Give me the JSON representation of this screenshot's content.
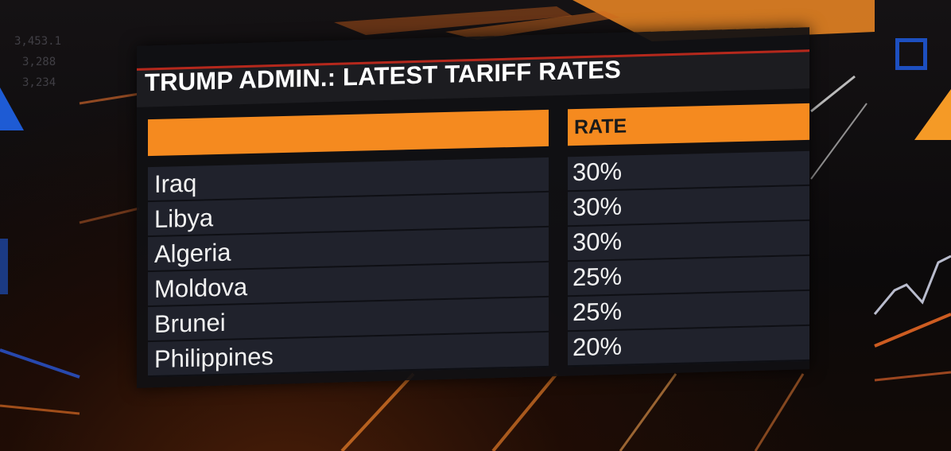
{
  "title": "TRUMP ADMIN.: LATEST TARIFF RATES",
  "table": {
    "headers": [
      "",
      "RATE"
    ],
    "rows": [
      {
        "country": "Iraq",
        "rate": "30%"
      },
      {
        "country": "Libya",
        "rate": "30%"
      },
      {
        "country": "Algeria",
        "rate": "30%"
      },
      {
        "country": "Moldova",
        "rate": "25%"
      },
      {
        "country": "Brunei",
        "rate": "25%"
      },
      {
        "country": "Philippines",
        "rate": "20%"
      }
    ]
  },
  "background": {
    "ticker_values": [
      "3,453.1",
      "3,288",
      "3,234"
    ]
  },
  "colors": {
    "accent_orange": "#f58a1f",
    "panel_dark": "#20222c",
    "title_red": "#b5281c",
    "screen_blue": "#1e5bd4"
  }
}
